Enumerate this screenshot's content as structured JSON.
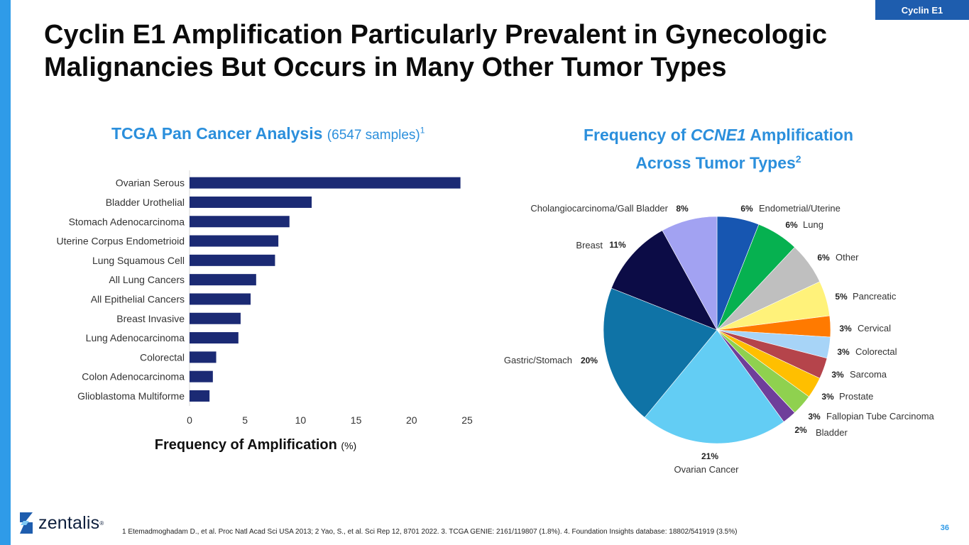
{
  "header": {
    "tag": "Cyclin E1",
    "title": "Cyclin E1 Amplification Particularly Prevalent in Gynecologic Malignancies But Occurs in Many Other Tumor Types"
  },
  "left_chart": {
    "title_bold": "TCGA Pan Cancer Analysis",
    "title_light": "(6547 samples)",
    "title_sup": "1"
  },
  "right_chart": {
    "title_pre": "Frequency of ",
    "title_italic": "CCNE1",
    "title_post": " Amplification",
    "title_line2": "Across Tumor Types",
    "title_sup": "2"
  },
  "chart_data": [
    {
      "type": "bar",
      "orientation": "horizontal",
      "title": "TCGA Pan Cancer Analysis (6547 samples)1",
      "categories": [
        "Ovarian Serous",
        "Bladder Urothelial",
        "Stomach Adenocarcinoma",
        "Uterine Corpus Endometrioid",
        "Lung Squamous Cell",
        "All Lung Cancers",
        "All Epithelial Cancers",
        "Breast Invasive",
        "Lung Adenocarcinoma",
        "Colorectal",
        "Colon Adenocarcinoma",
        "Glioblastoma Multiforme"
      ],
      "values": [
        24.4,
        11.0,
        9.0,
        8.0,
        7.7,
        6.0,
        5.5,
        4.6,
        4.4,
        2.4,
        2.1,
        1.8
      ],
      "xlabel": "Frequency of Amplification",
      "xlabel_unit": "(%)",
      "xlim": [
        0,
        25
      ],
      "xticks": [
        "0",
        "5",
        "10",
        "15",
        "20",
        "25"
      ],
      "bar_color": "#1B2A74"
    },
    {
      "type": "pie",
      "title": "Frequency of CCNE1 Amplification Across Tumor Types2",
      "slices": [
        {
          "label": "Endometrial/Uterine",
          "value": 6,
          "pct": "6%",
          "color": "#1756B1"
        },
        {
          "label": "Lung",
          "value": 6,
          "pct": "6%",
          "color": "#06B150"
        },
        {
          "label": "Other",
          "value": 6,
          "pct": "6%",
          "color": "#BFBFBF"
        },
        {
          "label": "Pancreatic",
          "value": 5,
          "pct": "5%",
          "color": "#FFF27A"
        },
        {
          "label": "Cervical",
          "value": 3,
          "pct": "3%",
          "color": "#FF7A00"
        },
        {
          "label": "Colorectal",
          "value": 3,
          "pct": "3%",
          "color": "#A7D4F7"
        },
        {
          "label": "Sarcoma",
          "value": 3,
          "pct": "3%",
          "color": "#B5444B"
        },
        {
          "label": "Prostate",
          "value": 3,
          "pct": "3%",
          "color": "#FFBF00"
        },
        {
          "label": "Fallopian Tube Carcinoma",
          "value": 3,
          "pct": "3%",
          "color": "#8FD14F"
        },
        {
          "label": "Bladder",
          "value": 2,
          "pct": "2%",
          "color": "#6F3E9A"
        },
        {
          "label": "Ovarian Cancer",
          "value": 21,
          "pct": "21%",
          "color": "#63CDF4"
        },
        {
          "label": "Gastric/Stomach",
          "value": 20,
          "pct": "20%",
          "color": "#0F73A6"
        },
        {
          "label": "Breast",
          "value": 11,
          "pct": "11%",
          "color": "#0C0C46"
        },
        {
          "label": "Cholangiocarcinoma/Gall Bladder",
          "value": 8,
          "pct": "8%",
          "color": "#A2A2F2"
        }
      ]
    }
  ],
  "footer": {
    "logo": "zentalis",
    "logo_reg": "®",
    "footnote": "1 Etemadmoghadam D., et al. Proc Natl Acad Sci USA 2013; 2 Yao, S., et al. Sci Rep 12, 8701 2022. 3. TCGA GENIE: 2161/119807 (1.8%). 4. Foundation Insights database: 18802/541919 (3.5%)",
    "page": "36"
  }
}
